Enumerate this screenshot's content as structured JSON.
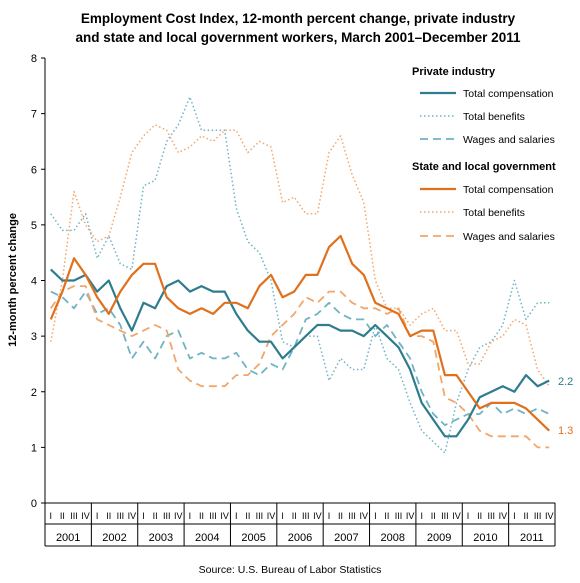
{
  "chart_data": {
    "type": "line",
    "title_line1": "Employment Cost Index, 12-month percent change, private industry",
    "title_line2": "and state and local government workers, March 2001–December 2011",
    "ylabel": "12-month percent change",
    "source": "Source:  U.S. Bureau of Labor Statistics",
    "ylim": [
      0,
      8
    ],
    "yticks": [
      "0",
      "1",
      "2",
      "3",
      "4",
      "5",
      "6",
      "7",
      "8"
    ],
    "quarters": [
      "I",
      "II",
      "III",
      "IV"
    ],
    "years": [
      "2001",
      "2002",
      "2003",
      "2004",
      "2005",
      "2006",
      "2007",
      "2008",
      "2009",
      "2010",
      "2011"
    ],
    "grid": false,
    "legend_position": "top-right",
    "legend_groups": [
      {
        "heading": "Private industry",
        "entries": [
          "Total compensation",
          "Total benefits",
          "Wages and salaries"
        ]
      },
      {
        "heading": "State and local  government",
        "entries": [
          "Total compensation",
          "Total benefits",
          "Wages and salaries"
        ]
      }
    ],
    "end_labels": {
      "private_total": "2.2",
      "state_total": "1.3"
    },
    "colors": {
      "private": "#2e7c8e",
      "private_light": "#6fb3c4",
      "state": "#e0701c",
      "state_light": "#f2a66b"
    },
    "series": [
      {
        "name": "Private industry Total compensation",
        "values": [
          4.2,
          4.0,
          4.0,
          4.1,
          3.8,
          4.0,
          3.5,
          3.1,
          3.6,
          3.5,
          3.9,
          4.0,
          3.8,
          3.9,
          3.8,
          3.8,
          3.4,
          3.1,
          2.9,
          2.9,
          2.6,
          2.8,
          3.0,
          3.2,
          3.2,
          3.1,
          3.1,
          3.0,
          3.2,
          3.0,
          2.8,
          2.4,
          1.8,
          1.5,
          1.2,
          1.2,
          1.5,
          1.9,
          2.0,
          2.1,
          2.0,
          2.3,
          2.1,
          2.2
        ]
      },
      {
        "name": "Private industry Total benefits",
        "values": [
          5.2,
          4.9,
          4.9,
          5.2,
          4.4,
          4.8,
          4.3,
          4.2,
          5.7,
          5.8,
          6.5,
          6.8,
          7.3,
          6.7,
          6.7,
          6.7,
          5.3,
          4.7,
          4.5,
          4.0,
          2.9,
          2.8,
          3.0,
          3.0,
          2.2,
          2.6,
          2.4,
          2.4,
          3.2,
          2.6,
          2.4,
          1.8,
          1.3,
          1.1,
          0.9,
          1.8,
          2.4,
          2.8,
          2.9,
          3.2,
          4.0,
          3.3,
          3.6,
          3.6
        ]
      },
      {
        "name": "Private industry Wages and salaries",
        "values": [
          3.8,
          3.7,
          3.5,
          3.8,
          3.4,
          3.5,
          3.2,
          2.6,
          2.9,
          2.6,
          3.0,
          3.1,
          2.6,
          2.7,
          2.6,
          2.6,
          2.7,
          2.4,
          2.3,
          2.5,
          2.4,
          2.8,
          3.3,
          3.4,
          3.6,
          3.4,
          3.3,
          3.3,
          3.0,
          3.2,
          2.9,
          2.6,
          2.0,
          1.6,
          1.4,
          1.5,
          1.6,
          1.6,
          1.8,
          1.6,
          1.7,
          1.6,
          1.7,
          1.6
        ]
      },
      {
        "name": "State and local government Total compensation",
        "values": [
          3.3,
          3.8,
          4.4,
          4.1,
          3.7,
          3.4,
          3.8,
          4.1,
          4.3,
          4.3,
          3.7,
          3.5,
          3.4,
          3.5,
          3.4,
          3.6,
          3.6,
          3.5,
          3.9,
          4.1,
          3.7,
          3.8,
          4.1,
          4.1,
          4.6,
          4.8,
          4.3,
          4.1,
          3.6,
          3.5,
          3.4,
          3.0,
          3.1,
          3.1,
          2.3,
          2.3,
          2.0,
          1.7,
          1.8,
          1.8,
          1.8,
          1.7,
          1.5,
          1.3
        ]
      },
      {
        "name": "State and local government Total benefits",
        "values": [
          2.9,
          4.0,
          5.6,
          5.0,
          4.7,
          4.8,
          5.5,
          6.3,
          6.6,
          6.8,
          6.7,
          6.3,
          6.4,
          6.6,
          6.5,
          6.7,
          6.7,
          6.3,
          6.5,
          6.4,
          5.4,
          5.5,
          5.2,
          5.2,
          6.3,
          6.6,
          5.9,
          5.4,
          4.0,
          3.5,
          3.5,
          3.2,
          3.4,
          3.5,
          3.1,
          3.1,
          2.5,
          2.5,
          2.9,
          3.0,
          3.3,
          3.2,
          2.4,
          2.1
        ]
      },
      {
        "name": "State and local government Wages and salaries",
        "values": [
          3.5,
          3.8,
          3.9,
          3.9,
          3.3,
          3.2,
          3.1,
          3.0,
          3.1,
          3.2,
          3.1,
          2.4,
          2.2,
          2.1,
          2.1,
          2.1,
          2.3,
          2.3,
          2.5,
          3.0,
          3.2,
          3.4,
          3.7,
          3.6,
          3.8,
          3.8,
          3.6,
          3.5,
          3.5,
          3.4,
          3.5,
          3.0,
          3.0,
          2.9,
          1.9,
          1.8,
          1.6,
          1.3,
          1.2,
          1.2,
          1.2,
          1.2,
          1.0,
          1.0
        ]
      }
    ]
  }
}
